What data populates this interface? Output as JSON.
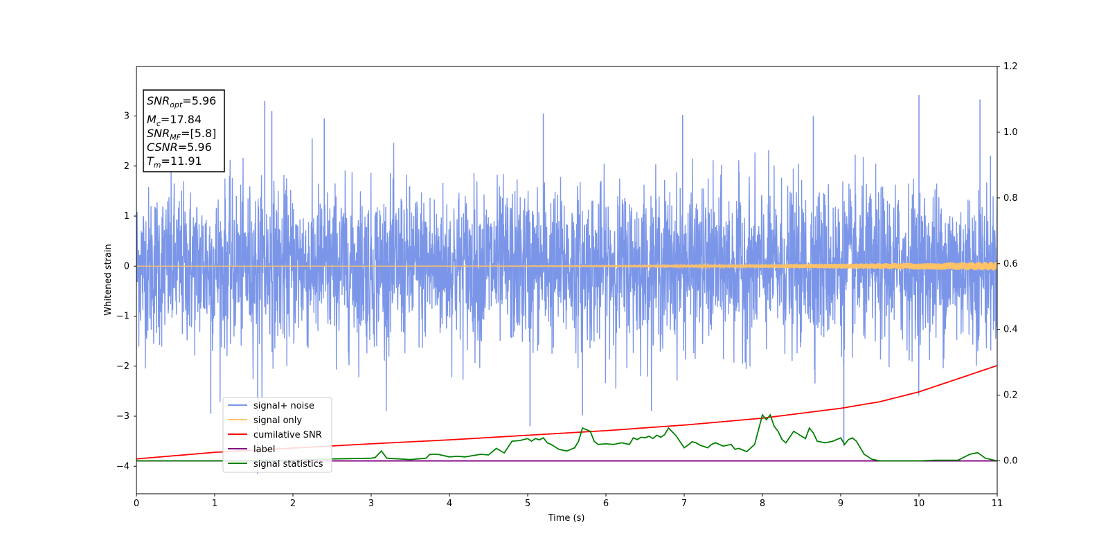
{
  "chart_data": {
    "type": "line",
    "xlabel": "Time (s)",
    "ylabel": "Whitened strain",
    "xlim": [
      0,
      11
    ],
    "ylim": [
      -4.55,
      3.99
    ],
    "y2lim": [
      -0.1,
      1.2
    ],
    "x_ticks": [
      "0",
      "1",
      "2",
      "3",
      "4",
      "5",
      "6",
      "7",
      "8",
      "9",
      "10",
      "11"
    ],
    "y_ticks": [
      "3",
      "2",
      "1",
      "0",
      "−1",
      "−2",
      "−3",
      "−4"
    ],
    "y2_ticks": [
      "1.2",
      "1.0",
      "0.8",
      "0.6",
      "0.4",
      "0.2",
      "0.0"
    ],
    "annotation": {
      "snr_opt": "5.96",
      "mc": "17.84",
      "snr_mf": "[5.8]",
      "csnr": "5.96",
      "tm": "11.91"
    },
    "legend": {
      "position": "lower-left",
      "entries": [
        "signal+ noise",
        "signal only",
        "cumilative SNR",
        "label",
        "signal statistics"
      ]
    },
    "colors": {
      "noise": "#7b96e8",
      "signal": "#ffc266",
      "csnr": "#ff0000",
      "label": "#800080",
      "stats": "#008000"
    },
    "series": [
      {
        "name": "signal+ noise",
        "axis": "left",
        "description_values": "dense noise time series, roughly N(0,1), peaks: (1.55,-4.15),(1.64,3.3),(10.0,3.42),(10.78,3.33),(5.03,-3.2)",
        "x_range": [
          0,
          11
        ]
      },
      {
        "name": "signal only",
        "axis": "left",
        "x_range": [
          0,
          11
        ],
        "amplitude_start": 0.0,
        "amplitude_end": 0.09
      },
      {
        "name": "cumilative SNR",
        "axis": "right",
        "x": [
          0,
          1,
          2,
          3,
          4,
          5,
          6,
          7,
          8,
          9,
          9.5,
          10,
          10.5,
          11
        ],
        "y": [
          0.006,
          0.026,
          0.039,
          0.052,
          0.064,
          0.078,
          0.092,
          0.109,
          0.13,
          0.16,
          0.18,
          0.21,
          0.25,
          0.29
        ]
      },
      {
        "name": "label",
        "axis": "right",
        "x": [
          0,
          11
        ],
        "y": [
          0.0,
          0.0
        ]
      },
      {
        "name": "signal statistics",
        "axis": "right",
        "x": [
          0,
          1,
          2,
          2.5,
          3.0,
          3.05,
          3.13,
          3.2,
          3.5,
          3.7,
          3.75,
          3.85,
          4.0,
          4.1,
          4.2,
          4.3,
          4.4,
          4.5,
          4.6,
          4.7,
          4.8,
          4.9,
          5.0,
          5.05,
          5.1,
          5.15,
          5.2,
          5.25,
          5.3,
          5.4,
          5.5,
          5.6,
          5.65,
          5.7,
          5.8,
          5.85,
          5.9,
          6.0,
          6.1,
          6.2,
          6.3,
          6.35,
          6.4,
          6.45,
          6.5,
          6.55,
          6.6,
          6.65,
          6.7,
          6.75,
          6.8,
          6.85,
          6.9,
          7.0,
          7.05,
          7.1,
          7.15,
          7.2,
          7.3,
          7.35,
          7.4,
          7.5,
          7.6,
          7.65,
          7.7,
          7.8,
          7.9,
          8.0,
          8.05,
          8.1,
          8.15,
          8.2,
          8.25,
          8.3,
          8.4,
          8.5,
          8.55,
          8.6,
          8.65,
          8.7,
          8.8,
          8.9,
          9.0,
          9.05,
          9.1,
          9.15,
          9.2,
          9.3,
          9.4,
          9.5,
          9.7,
          10.0,
          10.2,
          10.5,
          10.65,
          10.75,
          10.85,
          11.0
        ],
        "y": [
          0.0,
          0.0,
          0.002,
          0.006,
          0.008,
          0.01,
          0.03,
          0.008,
          0.004,
          0.008,
          0.02,
          0.02,
          0.012,
          0.014,
          0.012,
          0.016,
          0.02,
          0.018,
          0.038,
          0.024,
          0.06,
          0.062,
          0.068,
          0.06,
          0.068,
          0.064,
          0.07,
          0.055,
          0.05,
          0.035,
          0.03,
          0.04,
          0.06,
          0.1,
          0.09,
          0.06,
          0.05,
          0.052,
          0.05,
          0.055,
          0.05,
          0.07,
          0.065,
          0.072,
          0.07,
          0.075,
          0.068,
          0.078,
          0.072,
          0.08,
          0.1,
          0.088,
          0.075,
          0.04,
          0.048,
          0.058,
          0.055,
          0.048,
          0.04,
          0.05,
          0.055,
          0.045,
          0.05,
          0.035,
          0.038,
          0.028,
          0.05,
          0.14,
          0.125,
          0.14,
          0.105,
          0.09,
          0.065,
          0.055,
          0.09,
          0.075,
          0.068,
          0.1,
          0.085,
          0.06,
          0.055,
          0.06,
          0.07,
          0.05,
          0.065,
          0.07,
          0.06,
          0.02,
          0.005,
          0.0,
          0.0,
          0.0,
          0.002,
          0.002,
          0.02,
          0.025,
          0.008,
          0.0
        ]
      }
    ]
  }
}
